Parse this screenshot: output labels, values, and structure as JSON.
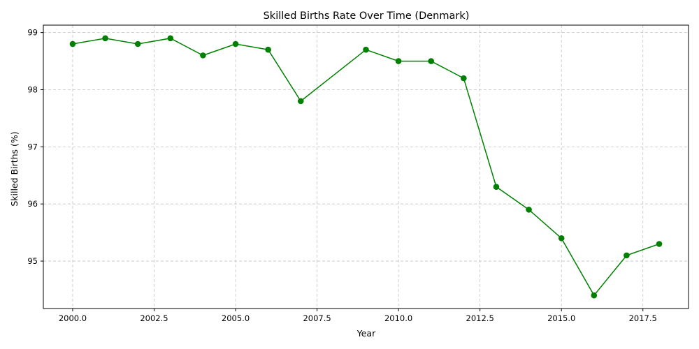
{
  "chart_data": {
    "type": "line",
    "title": "Skilled Births Rate Over Time (Denmark)",
    "xlabel": "Year",
    "ylabel": "Skilled Births (%)",
    "xlim": [
      1999.1,
      2018.9
    ],
    "ylim": [
      94.17,
      99.13
    ],
    "x_ticks": [
      2000.0,
      2002.5,
      2005.0,
      2007.5,
      2010.0,
      2012.5,
      2015.0,
      2017.5
    ],
    "x_tick_labels": [
      "2000.0",
      "2002.5",
      "2005.0",
      "2007.5",
      "2010.0",
      "2012.5",
      "2015.0",
      "2017.5"
    ],
    "y_ticks": [
      95,
      96,
      97,
      98,
      99
    ],
    "y_tick_labels": [
      "95",
      "96",
      "97",
      "98",
      "99"
    ],
    "grid": true,
    "series": [
      {
        "color": "#008000",
        "marker": "circle",
        "x": [
          2000,
          2001,
          2002,
          2003,
          2004,
          2005,
          2006,
          2007,
          2009,
          2010,
          2011,
          2012,
          2013,
          2014,
          2015,
          2016,
          2017,
          2018
        ],
        "y": [
          98.8,
          98.9,
          98.8,
          98.9,
          98.6,
          98.8,
          98.7,
          97.8,
          98.7,
          98.5,
          98.5,
          98.2,
          96.3,
          95.9,
          95.4,
          94.4,
          95.1,
          95.3
        ]
      }
    ]
  }
}
